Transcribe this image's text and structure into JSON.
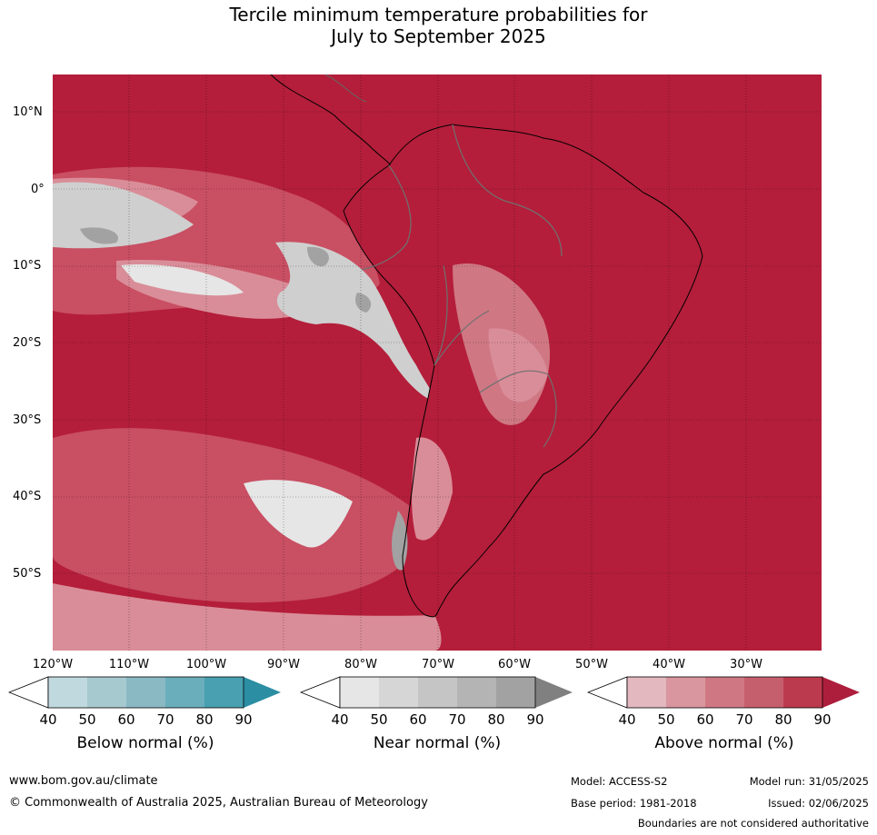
{
  "title_line1": "Tercile minimum temperature probabilities for",
  "title_line2": "July to September 2025",
  "lat_labels": [
    "10°N",
    "0°",
    "10°S",
    "20°S",
    "30°S",
    "40°S",
    "50°S"
  ],
  "lon_labels": [
    "120°W",
    "110°W",
    "100°W",
    "90°W",
    "80°W",
    "70°W",
    "60°W",
    "50°W",
    "40°W",
    "30°W"
  ],
  "colorbars": [
    {
      "title": "Below normal (%)",
      "ticks": [
        "40",
        "50",
        "60",
        "70",
        "80",
        "90"
      ],
      "colors": [
        "#c0d9de",
        "#a6c9cf",
        "#8ab9c4",
        "#6baebb",
        "#48a0b0",
        "#2b8ea3"
      ]
    },
    {
      "title": "Near normal (%)",
      "ticks": [
        "40",
        "50",
        "60",
        "70",
        "80",
        "90"
      ],
      "colors": [
        "#e6e6e6",
        "#d6d6d6",
        "#c5c5c5",
        "#b4b4b4",
        "#a2a2a2",
        "#808080"
      ]
    },
    {
      "title": "Above normal (%)",
      "ticks": [
        "40",
        "50",
        "60",
        "70",
        "80",
        "90"
      ],
      "colors": [
        "#e3b8bf",
        "#d9969f",
        "#cf7884",
        "#c65f6d",
        "#bc3a4d",
        "#ad1e3c"
      ]
    }
  ],
  "footer": {
    "url": "www.bom.gov.au/climate",
    "copyright": "© Commonwealth of Australia 2025, Australian Bureau of Meteorology",
    "model": "Model: ACCESS-S2",
    "base_period": "Base period: 1981-2018",
    "model_run": "Model run: 31/05/2025",
    "issued": "Issued: 02/06/2025",
    "boundaries": "Boundaries are not considered authoritative"
  },
  "colors": {
    "above_strong": "#b41e3a",
    "above_mid": "#c94f63",
    "above_light": "#d98d98",
    "near": "#cfcfcf"
  }
}
